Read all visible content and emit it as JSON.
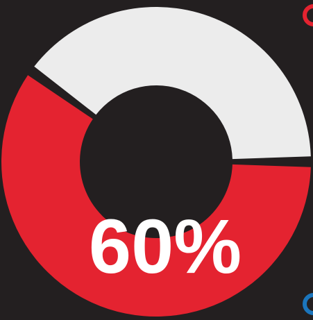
{
  "chart_data": {
    "type": "pie",
    "variant": "donut",
    "label": "60%",
    "slices": [
      {
        "value": 60,
        "color": "#e42330"
      },
      {
        "value": 40,
        "color": "#ececec"
      }
    ],
    "start": "3 o'clock",
    "direction": "clockwise"
  },
  "colors": {
    "background": "#231f20",
    "accent_red": "#e42330",
    "accent_blue": "#1b75bc",
    "remainder": "#ececec",
    "label": "#ffffff"
  }
}
